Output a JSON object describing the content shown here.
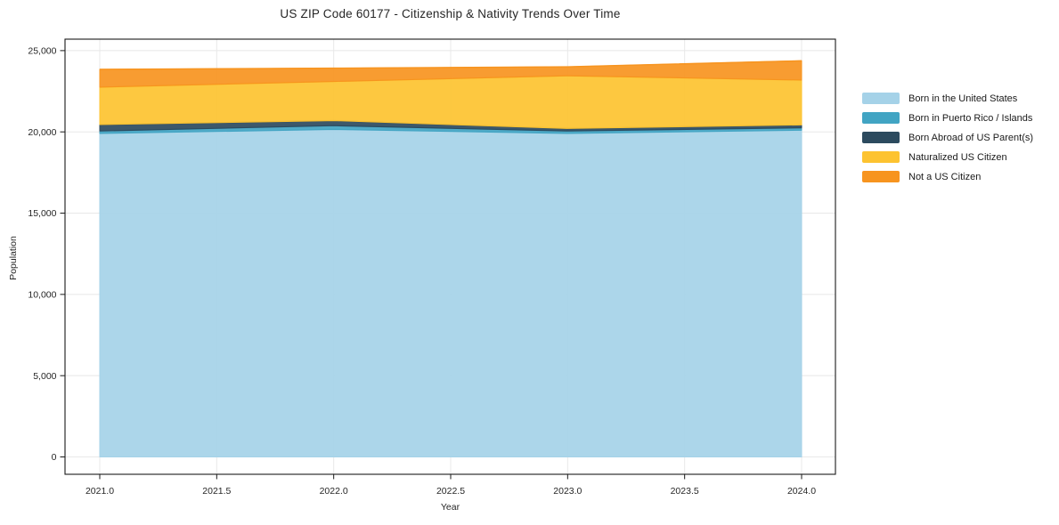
{
  "chart_data": {
    "type": "area",
    "stacked": true,
    "title": "US ZIP Code 60177 - Citizenship & Nativity Trends Over Time",
    "xlabel": "Year",
    "ylabel": "Population",
    "x": [
      2021,
      2022,
      2023,
      2024
    ],
    "series": [
      {
        "name": "Born in the United States",
        "color": "#A5D2E8",
        "values": [
          19900,
          20150,
          19900,
          20100
        ]
      },
      {
        "name": "Born in Puerto Rico / Islands",
        "color": "#41A4C3",
        "values": [
          150,
          230,
          150,
          145
        ]
      },
      {
        "name": "Born Abroad of US Parent(s)",
        "color": "#2C4A5E",
        "values": [
          400,
          310,
          160,
          185
        ]
      },
      {
        "name": "Naturalized US Citizen",
        "color": "#FDC330",
        "values": [
          2300,
          2410,
          3240,
          2755
        ]
      },
      {
        "name": "Not a US Citizen",
        "color": "#F7941F",
        "values": [
          1100,
          820,
          550,
          1190
        ]
      }
    ],
    "stacked_totals": [
      23850,
      23920,
      24000,
      24375
    ],
    "x_ticks": [
      {
        "value": 2021.0,
        "label": "2021.0"
      },
      {
        "value": 2021.5,
        "label": "2021.5"
      },
      {
        "value": 2022.0,
        "label": "2022.0"
      },
      {
        "value": 2022.5,
        "label": "2022.5"
      },
      {
        "value": 2023.0,
        "label": "2023.0"
      },
      {
        "value": 2023.5,
        "label": "2023.5"
      },
      {
        "value": 2024.0,
        "label": "2024.0"
      }
    ],
    "y_ticks": [
      {
        "value": 0,
        "label": "0"
      },
      {
        "value": 5000,
        "label": "5,000"
      },
      {
        "value": 10000,
        "label": "10,000"
      },
      {
        "value": 15000,
        "label": "15,000"
      },
      {
        "value": 20000,
        "label": "20,000"
      },
      {
        "value": 25000,
        "label": "25,000"
      }
    ],
    "ylim": [
      0,
      25000
    ],
    "grid": true,
    "legend_position": "right",
    "colors": {
      "grid": "#e8e8e8",
      "spine": "#1a1a1a",
      "tick_text": "#262626",
      "background": "#ffffff"
    }
  }
}
